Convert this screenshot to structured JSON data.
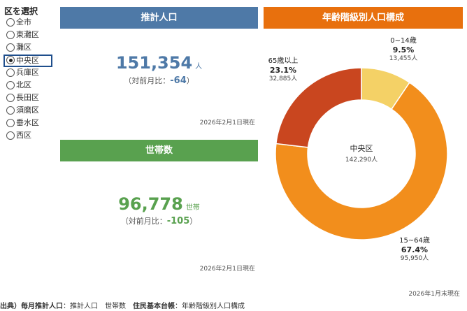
{
  "sidebar": {
    "title": "区を選択",
    "items": [
      {
        "label": "全市",
        "selected": false
      },
      {
        "label": "東灘区",
        "selected": false
      },
      {
        "label": "灘区",
        "selected": false
      },
      {
        "label": "中央区",
        "selected": true
      },
      {
        "label": "兵庫区",
        "selected": false
      },
      {
        "label": "北区",
        "selected": false
      },
      {
        "label": "長田区",
        "selected": false
      },
      {
        "label": "須磨区",
        "selected": false
      },
      {
        "label": "垂水区",
        "selected": false
      },
      {
        "label": "西区",
        "selected": false
      }
    ]
  },
  "population": {
    "header": "推計人口",
    "value": "151,354",
    "unit": "人",
    "diff_prefix": "（対前月比：",
    "diff": "-64",
    "diff_suffix": "）",
    "as_of": "2026年2月1日現在"
  },
  "households": {
    "header": "世帯数",
    "value": "96,778",
    "unit": "世帯",
    "diff_prefix": "（対前月比：",
    "diff": "-105",
    "diff_suffix": "）",
    "as_of": "2026年2月1日現在"
  },
  "age": {
    "header": "年齢階級別人口構成",
    "center_label": "中央区",
    "center_total": "142,290人",
    "as_of": "2026年1月末現在"
  },
  "colors": {
    "population": "#4e79a7",
    "households": "#59a14f",
    "age_header": "#e8700d",
    "seg_0_14": "#f4d166",
    "seg_15_64": "#f28e1c",
    "seg_65": "#c9461f"
  },
  "chart_data": {
    "type": "pie",
    "categories": [
      "0~14歳",
      "15~64歳",
      "65歳以上"
    ],
    "values": [
      13455,
      95950,
      32885
    ],
    "percent_labels": [
      "9.5%",
      "67.4%",
      "23.1%"
    ],
    "count_labels": [
      "13,455人",
      "95,950人",
      "32,885人"
    ]
  },
  "footer": {
    "source": "出典）",
    "src1": "毎月推計人口",
    "src1_items": "：推計人口　世帯数　",
    "src2": "住民基本台帳",
    "src2_items": "：年齢階級別人口構成"
  }
}
